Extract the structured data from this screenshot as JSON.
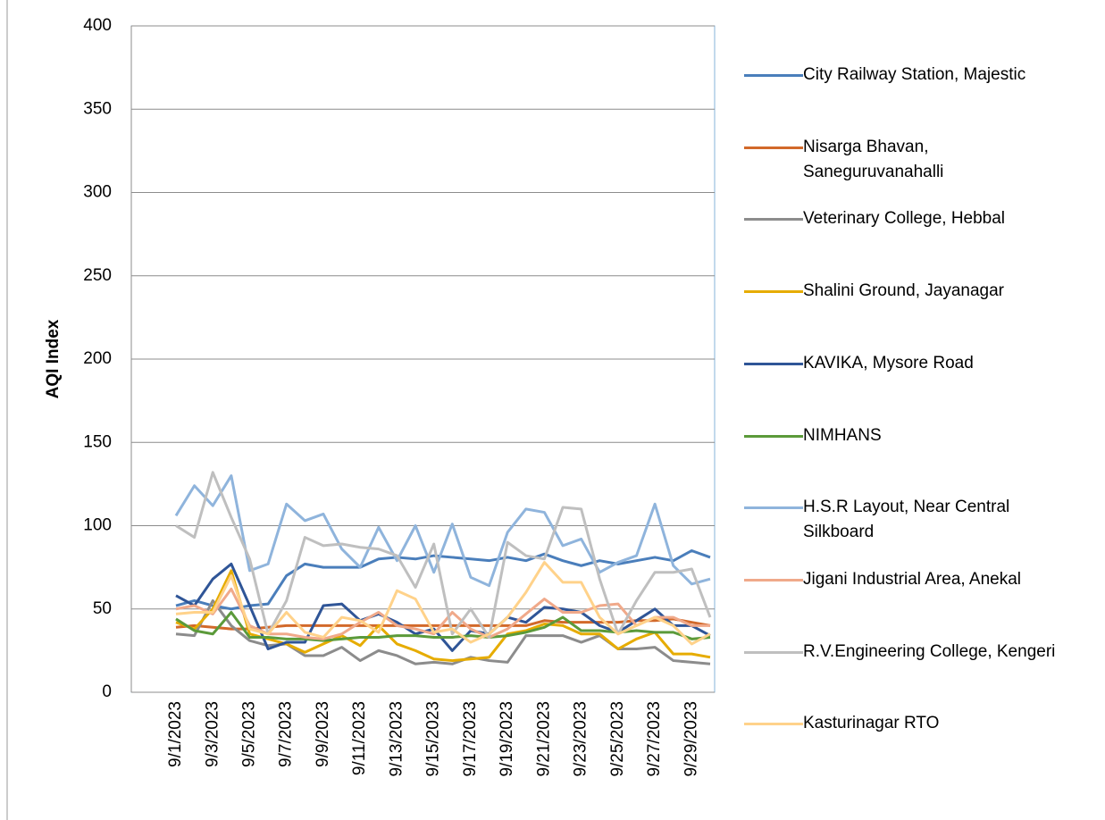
{
  "chart_data": {
    "type": "line",
    "y_label": "AQI Index",
    "categories": [
      "9/1/2023",
      null,
      "9/3/2023",
      null,
      "9/5/2023",
      null,
      "9/7/2023",
      null,
      "9/9/2023",
      null,
      "9/11/2023",
      null,
      "9/13/2023",
      null,
      "9/15/2023",
      null,
      "9/17/2023",
      null,
      "9/19/2023",
      null,
      "9/21/2023",
      null,
      "9/23/2023",
      null,
      "9/25/2023",
      null,
      "9/27/2023",
      null,
      "9/29/2023",
      null
    ],
    "ylim": [
      0,
      400
    ],
    "yticks": [
      0,
      50,
      100,
      150,
      200,
      250,
      300,
      350,
      400
    ],
    "grid": true,
    "legend": "right",
    "series": [
      {
        "name": "City Railway Station, Majestic",
        "color": "#4a7ebb",
        "values": [
          52,
          55,
          52,
          50,
          52,
          53,
          70,
          77,
          75,
          75,
          75,
          80,
          81,
          80,
          82,
          81,
          80,
          79,
          81,
          79,
          83,
          79,
          76,
          79,
          77,
          79,
          81,
          79,
          85,
          81
        ]
      },
      {
        "name": "Nisarga Bhavan, Saneguruvanahalli",
        "color": "#d2692a",
        "values": [
          39,
          40,
          39,
          38,
          38,
          39,
          40,
          40,
          40,
          40,
          40,
          40,
          40,
          40,
          40,
          40,
          40,
          40,
          40,
          40,
          43,
          42,
          42,
          42,
          42,
          43,
          43,
          44,
          42,
          40
        ]
      },
      {
        "name": "Veterinary College, Hebbal",
        "color": "#8c8c8c",
        "values": [
          35,
          34,
          55,
          40,
          31,
          28,
          29,
          22,
          22,
          27,
          19,
          25,
          22,
          17,
          18,
          17,
          21,
          19,
          18,
          34,
          34,
          34,
          30,
          34,
          26,
          26,
          27,
          19,
          18,
          17
        ]
      },
      {
        "name": "Shalini Ground, Jayanagar",
        "color": "#e6ac00",
        "values": [
          42,
          38,
          50,
          73,
          35,
          32,
          29,
          24,
          29,
          34,
          28,
          40,
          29,
          25,
          20,
          19,
          20,
          21,
          35,
          37,
          41,
          40,
          35,
          35,
          26,
          32,
          36,
          23,
          23,
          21
        ]
      },
      {
        "name": "KAVIKA, Mysore Road",
        "color": "#2f5597",
        "values": [
          58,
          52,
          68,
          77,
          52,
          26,
          30,
          30,
          52,
          53,
          43,
          47,
          42,
          35,
          38,
          25,
          37,
          35,
          45,
          42,
          51,
          50,
          48,
          40,
          36,
          43,
          50,
          40,
          40,
          34
        ]
      },
      {
        "name": "NIMHANS",
        "color": "#5b9a3a",
        "values": [
          44,
          37,
          35,
          48,
          33,
          33,
          32,
          32,
          31,
          32,
          33,
          33,
          34,
          34,
          33,
          33,
          34,
          33,
          34,
          36,
          39,
          45,
          37,
          37,
          36,
          37,
          36,
          36,
          32,
          33
        ]
      },
      {
        "name": "H.S.R Layout, Near Central Silkboard",
        "color": "#8fb4dc",
        "values": [
          106,
          124,
          112,
          130,
          73,
          77,
          113,
          103,
          107,
          86,
          75,
          99,
          79,
          100,
          72,
          101,
          69,
          64,
          96,
          110,
          108,
          88,
          92,
          72,
          78,
          82,
          113,
          76,
          65,
          68
        ]
      },
      {
        "name": "Jigani Industrial Area, Anekal",
        "color": "#f0a98a",
        "values": [
          50,
          52,
          47,
          62,
          40,
          35,
          35,
          33,
          32,
          35,
          42,
          48,
          40,
          38,
          35,
          48,
          38,
          33,
          38,
          47,
          56,
          48,
          48,
          52,
          53,
          40,
          45,
          45,
          40,
          40
        ]
      },
      {
        "name": "R.V.Engineering College, Kengeri",
        "color": "#bfbfbf",
        "values": [
          100,
          93,
          132,
          105,
          80,
          35,
          55,
          93,
          88,
          89,
          87,
          86,
          82,
          63,
          89,
          35,
          50,
          33,
          90,
          82,
          80,
          111,
          110,
          68,
          35,
          55,
          72,
          72,
          74,
          45
        ]
      },
      {
        "name": "Kasturinagar RTO",
        "color": "#ffd28a",
        "values": [
          47,
          48,
          48,
          70,
          38,
          35,
          48,
          36,
          33,
          45,
          43,
          36,
          61,
          56,
          36,
          38,
          30,
          35,
          45,
          60,
          78,
          66,
          66,
          45,
          35,
          40,
          45,
          40,
          29,
          35
        ]
      }
    ]
  }
}
